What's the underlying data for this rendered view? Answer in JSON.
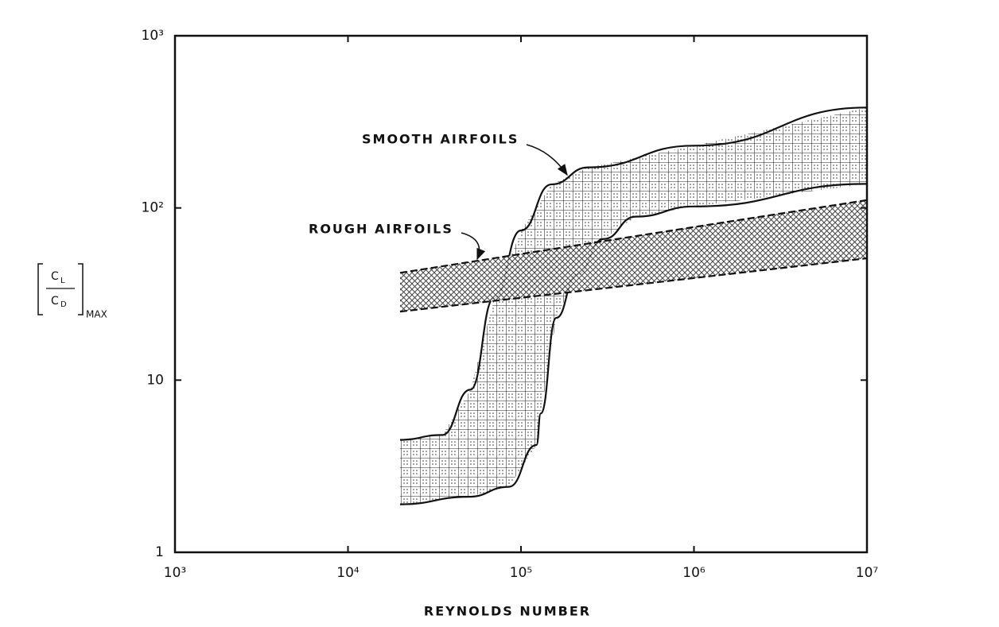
{
  "chart_data": {
    "type": "band",
    "xlabel": "REYNOLDS NUMBER",
    "ylabel": {
      "numerator": {
        "base": "C",
        "sub": "L"
      },
      "denominator": {
        "base": "C",
        "sub": "D"
      },
      "subscript": "MAX"
    },
    "log_x": true,
    "log_y": true,
    "xlim": [
      1000,
      10000000
    ],
    "ylim": [
      1,
      1000
    ],
    "xticks": [
      {
        "value": 1000,
        "label": "10³"
      },
      {
        "value": 10000,
        "label": "10⁴"
      },
      {
        "value": 100000,
        "label": "10⁵"
      },
      {
        "value": 1000000,
        "label": "10⁶"
      },
      {
        "value": 10000000,
        "label": "10⁷"
      }
    ],
    "yticks": [
      1,
      10,
      {
        "value": 100,
        "label": "10²"
      },
      {
        "value": 1000,
        "label": "10³"
      }
    ],
    "series": [
      {
        "name": "SMOOTH AIRFOILS",
        "pattern": "grid",
        "dashed": false,
        "upper": {
          "x": [
            20000,
            35000,
            51000,
            70000,
            100000,
            150000,
            245000,
            1000000,
            10000000
          ],
          "values": [
            4.5,
            4.8,
            8.8,
            30,
            74,
            137,
            172,
            230,
            383
          ]
        },
        "lower": {
          "x": [
            20000,
            50000,
            85000,
            123000,
            130000,
            160000,
            210000,
            300000,
            460000,
            1000000,
            10000000
          ],
          "values": [
            1.9,
            2.1,
            2.4,
            4.2,
            6.4,
            23,
            41,
            66,
            89,
            102,
            138
          ]
        }
      },
      {
        "name": "ROUGH AIRFOILS",
        "pattern": "cross",
        "dashed": true,
        "upper": {
          "x": [
            20000,
            10000000
          ],
          "values": [
            42,
            111
          ]
        },
        "lower": {
          "x": [
            20000,
            10000000
          ],
          "values": [
            25,
            51
          ]
        }
      }
    ]
  }
}
